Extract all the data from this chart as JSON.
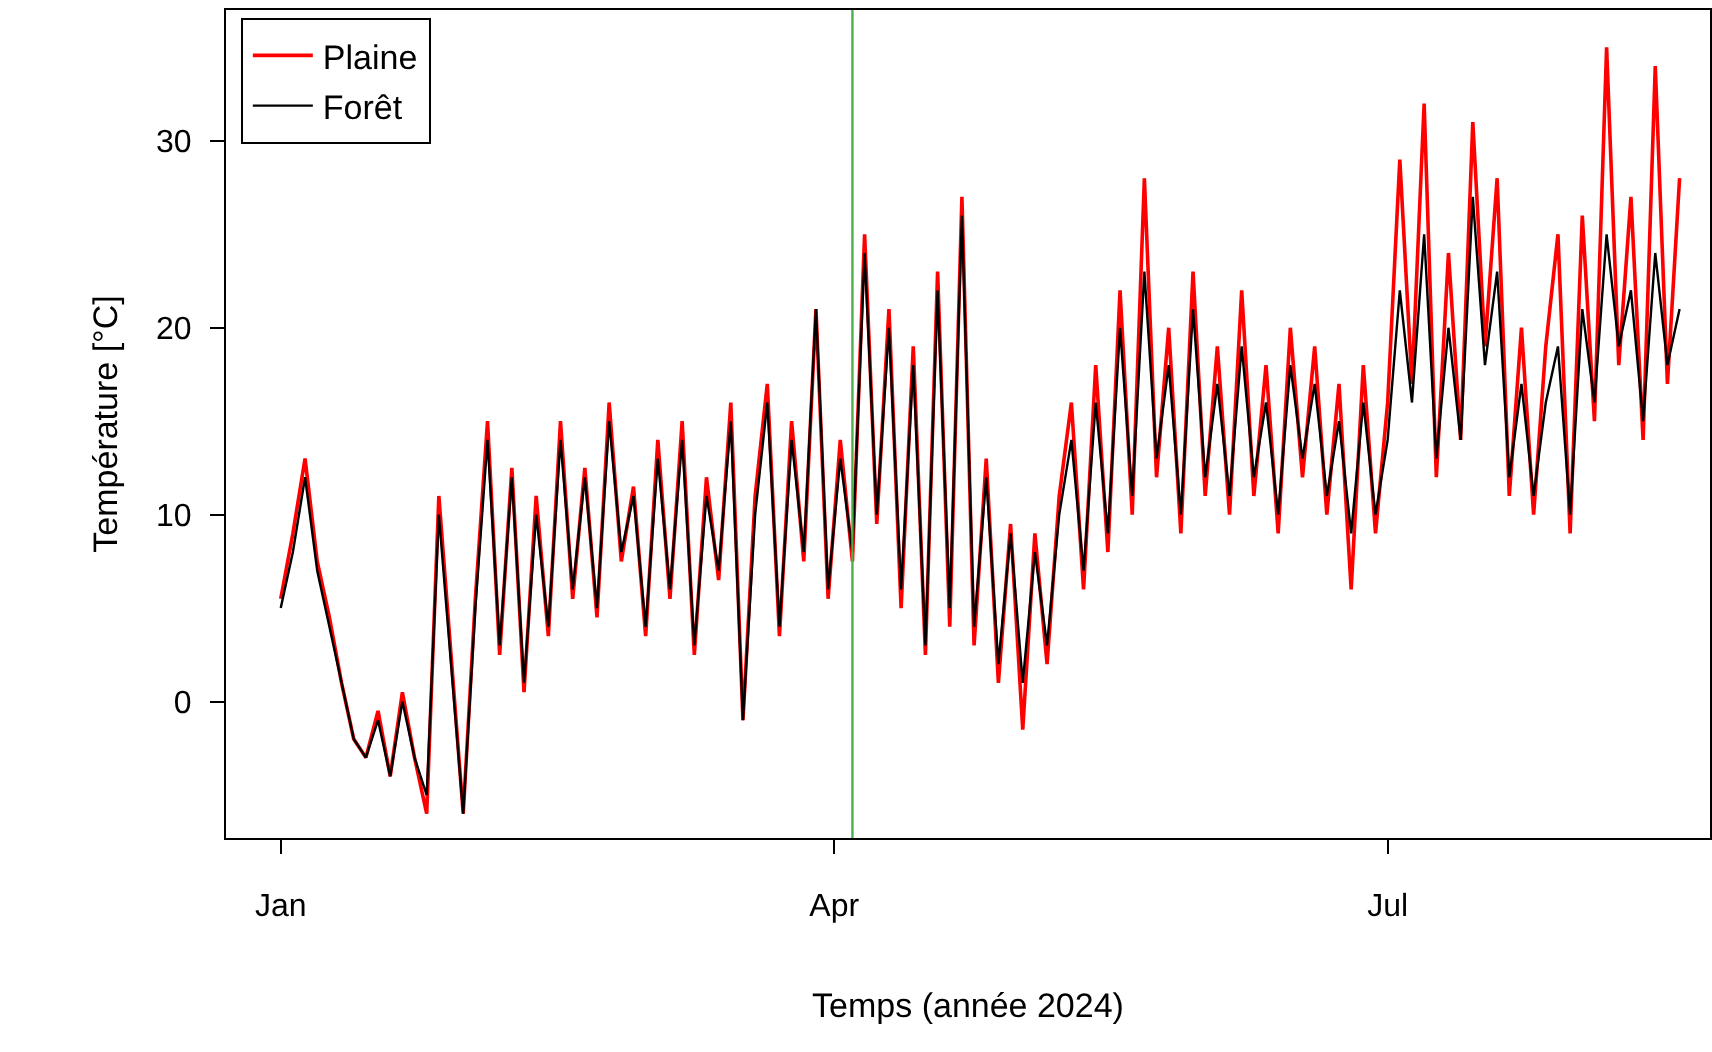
{
  "chart_data": {
    "type": "line",
    "xlabel": "Temps (année 2024)",
    "ylabel": "Température [°C]",
    "x": [
      "2024-01-01",
      "2024-01-03",
      "2024-01-05",
      "2024-01-07",
      "2024-01-09",
      "2024-01-11",
      "2024-01-13",
      "2024-01-15",
      "2024-01-17",
      "2024-01-19",
      "2024-01-21",
      "2024-01-23",
      "2024-01-25",
      "2024-01-27",
      "2024-01-29",
      "2024-01-31",
      "2024-02-02",
      "2024-02-04",
      "2024-02-06",
      "2024-02-08",
      "2024-02-10",
      "2024-02-12",
      "2024-02-14",
      "2024-02-16",
      "2024-02-18",
      "2024-02-20",
      "2024-02-22",
      "2024-02-24",
      "2024-02-26",
      "2024-02-28",
      "2024-03-01",
      "2024-03-03",
      "2024-03-05",
      "2024-03-07",
      "2024-03-09",
      "2024-03-11",
      "2024-03-13",
      "2024-03-15",
      "2024-03-17",
      "2024-03-19",
      "2024-03-21",
      "2024-03-23",
      "2024-03-25",
      "2024-03-27",
      "2024-03-29",
      "2024-03-31",
      "2024-04-02",
      "2024-04-04",
      "2024-04-06",
      "2024-04-08",
      "2024-04-10",
      "2024-04-12",
      "2024-04-14",
      "2024-04-16",
      "2024-04-18",
      "2024-04-20",
      "2024-04-22",
      "2024-04-24",
      "2024-04-26",
      "2024-04-28",
      "2024-04-30",
      "2024-05-02",
      "2024-05-04",
      "2024-05-06",
      "2024-05-08",
      "2024-05-10",
      "2024-05-12",
      "2024-05-14",
      "2024-05-16",
      "2024-05-18",
      "2024-05-20",
      "2024-05-22",
      "2024-05-24",
      "2024-05-26",
      "2024-05-28",
      "2024-05-30",
      "2024-06-01",
      "2024-06-03",
      "2024-06-05",
      "2024-06-07",
      "2024-06-09",
      "2024-06-11",
      "2024-06-13",
      "2024-06-15",
      "2024-06-17",
      "2024-06-19",
      "2024-06-21",
      "2024-06-23",
      "2024-06-25",
      "2024-06-27",
      "2024-06-29",
      "2024-07-01",
      "2024-07-03",
      "2024-07-05",
      "2024-07-07",
      "2024-07-09",
      "2024-07-11",
      "2024-07-13",
      "2024-07-15",
      "2024-07-17",
      "2024-07-19",
      "2024-07-21",
      "2024-07-23",
      "2024-07-25",
      "2024-07-27",
      "2024-07-29",
      "2024-07-31",
      "2024-08-02",
      "2024-08-04",
      "2024-08-06",
      "2024-08-08",
      "2024-08-10",
      "2024-08-12",
      "2024-08-14",
      "2024-08-16",
      "2024-08-18"
    ],
    "series": [
      {
        "name": "Plaine",
        "color": "#ff0000",
        "values": [
          5.5,
          9,
          13,
          7.5,
          4.5,
          1,
          -2,
          -3,
          -0.5,
          -4,
          0.5,
          -3,
          -6,
          11,
          2.5,
          -6,
          5.5,
          15,
          2.5,
          12.5,
          0.5,
          11,
          3.5,
          15,
          5.5,
          12.5,
          4.5,
          16,
          7.5,
          11.5,
          3.5,
          14,
          5.5,
          15,
          2.5,
          12,
          6.5,
          16,
          -1,
          11,
          17,
          3.5,
          15,
          7.5,
          21,
          5.5,
          14,
          7.5,
          25,
          9.5,
          21,
          5,
          19,
          2.5,
          23,
          4,
          27,
          3,
          13,
          1,
          9.5,
          -1.5,
          9,
          2,
          11,
          16,
          6,
          18,
          8,
          22,
          10,
          28,
          12,
          20,
          9,
          23,
          11,
          19,
          10,
          22,
          11,
          18,
          9,
          20,
          12,
          19,
          10,
          17,
          6,
          18,
          9,
          16,
          29,
          17,
          32,
          12,
          24,
          14,
          31,
          19,
          28,
          11,
          20,
          10,
          19,
          25,
          9,
          26,
          15,
          35,
          18,
          27,
          14,
          34,
          17,
          28
        ]
      },
      {
        "name": "Forêt",
        "color": "#000000",
        "values": [
          5,
          8,
          12,
          7,
          4,
          1,
          -2,
          -3,
          -1,
          -4,
          0,
          -3,
          -5,
          10,
          2,
          -6,
          5,
          14,
          3,
          12,
          1,
          10,
          4,
          14,
          6,
          12,
          5,
          15,
          8,
          11,
          4,
          13,
          6,
          14,
          3,
          11,
          7,
          15,
          -1,
          10,
          16,
          4,
          14,
          8,
          21,
          6,
          13,
          8,
          24,
          10,
          20,
          6,
          18,
          3,
          22,
          5,
          26,
          4,
          12,
          2,
          9,
          1,
          8,
          3,
          10,
          14,
          7,
          16,
          9,
          20,
          11,
          23,
          13,
          18,
          10,
          21,
          12,
          17,
          11,
          19,
          12,
          16,
          10,
          18,
          13,
          17,
          11,
          15,
          9,
          16,
          10,
          14,
          22,
          16,
          25,
          13,
          20,
          14,
          27,
          18,
          23,
          12,
          17,
          11,
          16,
          19,
          10,
          21,
          16,
          25,
          19,
          22,
          15,
          24,
          18,
          21
        ]
      }
    ],
    "xlim": [
      "2023-12-23",
      "2024-08-23"
    ],
    "xticks": [
      {
        "value": "2024-01-01",
        "label": "Jan"
      },
      {
        "value": "2024-04-01",
        "label": "Apr"
      },
      {
        "value": "2024-07-01",
        "label": "Jul"
      }
    ],
    "ylim": [
      -7.3,
      37
    ],
    "yticks": [
      0,
      10,
      20,
      30
    ],
    "ref_lines": [
      {
        "axis": "x",
        "value": "2024-04-04",
        "label": null,
        "color": "#4daf4a"
      }
    ],
    "legend": "top left"
  }
}
